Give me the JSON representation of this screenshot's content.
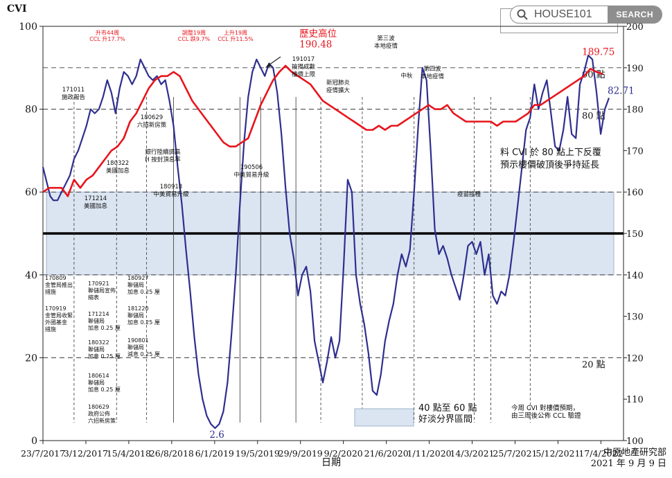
{
  "search": {
    "placeholder": "HOUSE101",
    "button_label": "SEARCH"
  },
  "chart_data": {
    "type": "line",
    "ylabel": "CVI",
    "xlabel": "日期",
    "left_axis": {
      "min": 0,
      "max": 100,
      "ticks": [
        0,
        20,
        40,
        60,
        80,
        100
      ]
    },
    "right_axis": {
      "min": 100,
      "max": 200,
      "ticks": [
        100,
        110,
        120,
        130,
        140,
        150,
        160,
        170,
        180,
        190,
        200
      ]
    },
    "x_ticks": [
      "23/7/2017",
      "3/12/2017",
      "15/4/2018",
      "26/8/2018",
      "6/1/2019",
      "19/5/2019",
      "29/9/2019",
      "9/2/2020",
      "21/6/2020",
      "1/11/2020",
      "14/3/2021",
      "25/7/2021",
      "5/12/2021",
      "17/4/2022"
    ],
    "colors": {
      "cvi": "#2e2e8f",
      "ccl": "#e8141b",
      "band": "#dbe5f1",
      "red_text": "#e8141b"
    },
    "series": [
      {
        "axis": "left",
        "color": "#2e2e8f",
        "points": [
          [
            0,
            66
          ],
          [
            0.2,
            62
          ],
          [
            0.35,
            59
          ],
          [
            0.5,
            58
          ],
          [
            0.7,
            58
          ],
          [
            0.9,
            60
          ],
          [
            1.1,
            62
          ],
          [
            1.3,
            64
          ],
          [
            1.5,
            68
          ],
          [
            1.7,
            70
          ],
          [
            1.9,
            73
          ],
          [
            2.1,
            76
          ],
          [
            2.3,
            80
          ],
          [
            2.5,
            79
          ],
          [
            2.7,
            80
          ],
          [
            2.9,
            83
          ],
          [
            3.1,
            87
          ],
          [
            3.3,
            84
          ],
          [
            3.5,
            79
          ],
          [
            3.7,
            85
          ],
          [
            3.9,
            89
          ],
          [
            4.1,
            88
          ],
          [
            4.3,
            86
          ],
          [
            4.5,
            88
          ],
          [
            4.7,
            92
          ],
          [
            4.9,
            90
          ],
          [
            5.1,
            88
          ],
          [
            5.3,
            87
          ],
          [
            5.5,
            88
          ],
          [
            5.7,
            86
          ],
          [
            5.9,
            87
          ],
          [
            6.1,
            82
          ],
          [
            6.3,
            76
          ],
          [
            6.5,
            66
          ],
          [
            6.7,
            57
          ],
          [
            6.9,
            46
          ],
          [
            7.1,
            36
          ],
          [
            7.3,
            25
          ],
          [
            7.5,
            16
          ],
          [
            7.7,
            10
          ],
          [
            7.9,
            6
          ],
          [
            8.1,
            4
          ],
          [
            8.3,
            3
          ],
          [
            8.5,
            4
          ],
          [
            8.7,
            7
          ],
          [
            8.9,
            14
          ],
          [
            9.1,
            26
          ],
          [
            9.3,
            40
          ],
          [
            9.5,
            57
          ],
          [
            9.7,
            72
          ],
          [
            9.9,
            83
          ],
          [
            10.1,
            89
          ],
          [
            10.3,
            92
          ],
          [
            10.5,
            90
          ],
          [
            10.7,
            88
          ],
          [
            10.9,
            91
          ],
          [
            11.1,
            90
          ],
          [
            11.3,
            84
          ],
          [
            11.5,
            74
          ],
          [
            11.7,
            61
          ],
          [
            11.9,
            50
          ],
          [
            12.1,
            44
          ],
          [
            12.3,
            35
          ],
          [
            12.5,
            40
          ],
          [
            12.7,
            42
          ],
          [
            12.9,
            36
          ],
          [
            13.1,
            24
          ],
          [
            13.3,
            19
          ],
          [
            13.5,
            14
          ],
          [
            13.7,
            19
          ],
          [
            13.9,
            25
          ],
          [
            14.1,
            20
          ],
          [
            14.3,
            24
          ],
          [
            14.5,
            42
          ],
          [
            14.7,
            63
          ],
          [
            14.9,
            60
          ],
          [
            15.1,
            40
          ],
          [
            15.3,
            33
          ],
          [
            15.5,
            28
          ],
          [
            15.7,
            21
          ],
          [
            15.9,
            12
          ],
          [
            16.1,
            11
          ],
          [
            16.3,
            16
          ],
          [
            16.5,
            24
          ],
          [
            16.7,
            29
          ],
          [
            16.9,
            33
          ],
          [
            17.1,
            40
          ],
          [
            17.3,
            45
          ],
          [
            17.5,
            42
          ],
          [
            17.7,
            46
          ],
          [
            17.9,
            60
          ],
          [
            18.1,
            76
          ],
          [
            18.3,
            90
          ],
          [
            18.5,
            87
          ],
          [
            18.7,
            70
          ],
          [
            18.9,
            51
          ],
          [
            19.1,
            45
          ],
          [
            19.3,
            47
          ],
          [
            19.5,
            44
          ],
          [
            19.7,
            40
          ],
          [
            19.9,
            37
          ],
          [
            20.1,
            34
          ],
          [
            20.3,
            40
          ],
          [
            20.5,
            47
          ],
          [
            20.7,
            48
          ],
          [
            20.9,
            45
          ],
          [
            21.1,
            48
          ],
          [
            21.3,
            40
          ],
          [
            21.5,
            45
          ],
          [
            21.7,
            35
          ],
          [
            21.9,
            33
          ],
          [
            22.1,
            36
          ],
          [
            22.3,
            35
          ],
          [
            22.5,
            40
          ],
          [
            22.7,
            48
          ],
          [
            22.9,
            57
          ],
          [
            23.1,
            66
          ],
          [
            23.3,
            75
          ],
          [
            23.5,
            78
          ],
          [
            23.7,
            86
          ],
          [
            23.9,
            80
          ],
          [
            24.1,
            84
          ],
          [
            24.3,
            87
          ],
          [
            24.5,
            79
          ],
          [
            24.7,
            71
          ],
          [
            24.9,
            70
          ],
          [
            25.1,
            75
          ],
          [
            25.3,
            83
          ],
          [
            25.5,
            74
          ],
          [
            25.7,
            73
          ],
          [
            25.9,
            86
          ],
          [
            26.1,
            89
          ],
          [
            26.3,
            93
          ],
          [
            26.5,
            92
          ],
          [
            26.7,
            84
          ],
          [
            26.9,
            74
          ],
          [
            27.1,
            80
          ],
          [
            27.3,
            82.71
          ]
        ]
      },
      {
        "axis": "right",
        "color": "#e8141b",
        "points": [
          [
            0,
            160
          ],
          [
            0.3,
            161
          ],
          [
            0.6,
            161
          ],
          [
            0.9,
            161
          ],
          [
            1.2,
            159
          ],
          [
            1.5,
            163
          ],
          [
            1.8,
            161
          ],
          [
            2.1,
            163
          ],
          [
            2.4,
            164
          ],
          [
            2.7,
            166
          ],
          [
            3,
            168
          ],
          [
            3.3,
            170
          ],
          [
            3.6,
            171
          ],
          [
            3.9,
            173
          ],
          [
            4.2,
            177
          ],
          [
            4.5,
            179
          ],
          [
            4.8,
            182
          ],
          [
            5.1,
            185
          ],
          [
            5.4,
            187
          ],
          [
            5.7,
            188
          ],
          [
            6,
            188
          ],
          [
            6.3,
            189
          ],
          [
            6.6,
            188
          ],
          [
            6.9,
            185
          ],
          [
            7.2,
            182
          ],
          [
            7.5,
            180
          ],
          [
            7.8,
            178
          ],
          [
            8.1,
            176
          ],
          [
            8.4,
            174
          ],
          [
            8.7,
            172
          ],
          [
            9,
            171
          ],
          [
            9.3,
            171
          ],
          [
            9.6,
            172
          ],
          [
            9.9,
            173
          ],
          [
            10.2,
            177
          ],
          [
            10.5,
            181
          ],
          [
            10.8,
            184
          ],
          [
            11.1,
            187
          ],
          [
            11.4,
            189
          ],
          [
            11.7,
            190.48
          ],
          [
            12,
            189
          ],
          [
            12.3,
            188
          ],
          [
            12.6,
            187
          ],
          [
            12.9,
            186
          ],
          [
            13.2,
            184
          ],
          [
            13.5,
            182
          ],
          [
            13.8,
            181
          ],
          [
            14.1,
            180
          ],
          [
            14.4,
            179
          ],
          [
            14.7,
            178
          ],
          [
            15,
            177
          ],
          [
            15.3,
            176
          ],
          [
            15.6,
            175
          ],
          [
            15.9,
            175
          ],
          [
            16.2,
            176
          ],
          [
            16.5,
            175
          ],
          [
            16.8,
            176
          ],
          [
            17.1,
            176
          ],
          [
            17.4,
            177
          ],
          [
            17.7,
            178
          ],
          [
            18,
            179
          ],
          [
            18.3,
            180
          ],
          [
            18.6,
            181
          ],
          [
            18.9,
            180
          ],
          [
            19.2,
            180
          ],
          [
            19.5,
            181
          ],
          [
            19.8,
            179
          ],
          [
            20.1,
            178
          ],
          [
            20.4,
            177
          ],
          [
            20.7,
            177
          ],
          [
            21,
            177
          ],
          [
            21.3,
            177
          ],
          [
            21.6,
            177
          ],
          [
            21.9,
            176
          ],
          [
            22.2,
            177
          ],
          [
            22.5,
            177
          ],
          [
            22.8,
            177
          ],
          [
            23.1,
            178
          ],
          [
            23.4,
            179
          ],
          [
            23.7,
            181
          ],
          [
            24,
            181
          ],
          [
            24.3,
            182
          ],
          [
            24.6,
            183
          ],
          [
            24.9,
            184
          ],
          [
            25.2,
            185
          ],
          [
            25.5,
            186
          ],
          [
            25.8,
            187
          ],
          [
            26.1,
            188
          ],
          [
            26.4,
            189.75
          ],
          [
            26.7,
            189
          ],
          [
            27,
            188.5
          ]
        ]
      }
    ],
    "band": {
      "from": 40,
      "to": 60,
      "label": "40 點至 60 點\n好淡分界區間"
    },
    "reference_lines": [
      {
        "axis": "right",
        "value": 190,
        "label": "90 點"
      },
      {
        "axis": "right",
        "value": 180,
        "label": "80 點"
      },
      {
        "axis": "right",
        "value": 120,
        "label": "20 點"
      }
    ],
    "point_labels": [
      {
        "text": "2.6",
        "x": 8.3,
        "y": 3,
        "axis": "left",
        "color": "#2e2e8f"
      },
      {
        "text": "82.71",
        "x": 27.3,
        "y": 82.71,
        "axis": "left",
        "color": "#2e2e8f"
      },
      {
        "text": "189.75",
        "x": 26.4,
        "y": 189.75,
        "axis": "right",
        "color": "#e8141b"
      },
      {
        "text": "歷史高位\n190.48",
        "x": 11.7,
        "y": 190.48,
        "axis": "right",
        "color": "#e8141b"
      }
    ],
    "annotations_red": [
      "升市44周\nCCL 升17.7%",
      "調整19周\nCCL 跌9.7%",
      "上升19周\nCCL 升11.5%"
    ],
    "annotations_black": [
      "171011\n施政報告",
      "171214\n美國加息",
      "180322\n美國加息",
      "180629\n六招新房策",
      "銀行陸續調高\nH 按封頂息率",
      "180918\n中美貿易升級",
      "190506\n中美貿易升級",
      "191017\n按揭成數\n樓價上限",
      "新冠肺炎\n疫情擴大",
      "第三波\n本地疫情",
      "中秋",
      "第四波\n本地疫情",
      "疫苗接種",
      "料 CVI 於 80 點上下反覆\n預示樓價破頂後爭持延長",
      "今周 CVI 對樓價預期，\n由三周後公佈 CCL 驗證"
    ],
    "side_notes": [
      "170809\n金管局推出\n措施",
      "170919\n金管局收緊\n外國基金\n措施",
      "170921\n聯儲局宣佈\n縮表",
      "171214\n聯儲局\n加息 0.25 厘",
      "180322\n聯儲局\n加息 0.25 厘",
      "180614\n聯儲局\n加息 0.25 厘",
      "180629\n政府公佈\n六招新房策",
      "180927\n聯儲局\n加息 0.25 厘",
      "181220\n聯儲局\n加息 0.25 厘",
      "190801\n聯儲局\n減息 0.25 厘"
    ],
    "source": "中原地產研究部\n2021 年 9 月 9 日",
    "grid": true
  }
}
